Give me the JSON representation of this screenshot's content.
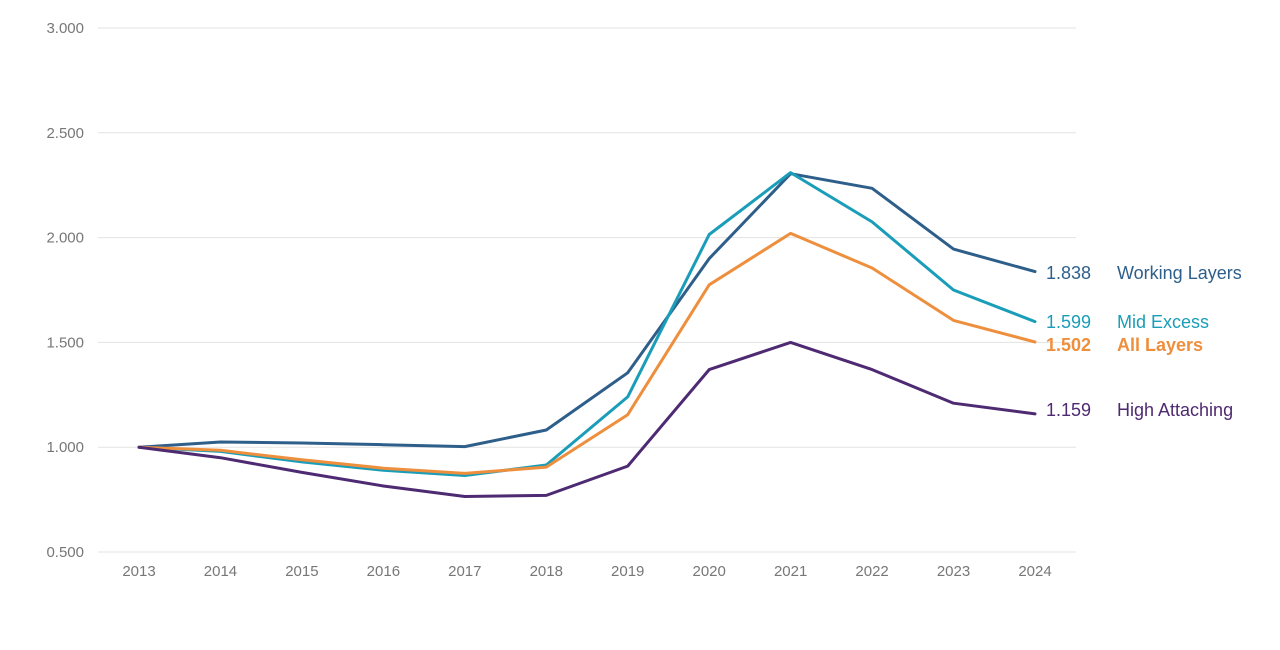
{
  "chart_data": {
    "type": "line",
    "x": [
      "2013",
      "2014",
      "2015",
      "2016",
      "2017",
      "2018",
      "2019",
      "2020",
      "2021",
      "2022",
      "2023",
      "2024"
    ],
    "ylim": [
      0.5,
      3.0
    ],
    "yticks": [
      "0.500",
      "1.000",
      "1.500",
      "2.000",
      "2.500",
      "3.000"
    ],
    "grid": "horizontal",
    "legend": "right, end-of-line labels",
    "series": [
      {
        "name": "Working Layers",
        "color": "#2E5F8A",
        "end_label": "1.838",
        "bold": false,
        "values": [
          1.0,
          1.025,
          1.02,
          1.012,
          1.003,
          1.082,
          1.355,
          1.9,
          2.305,
          2.235,
          1.945,
          1.838
        ]
      },
      {
        "name": "Mid Excess",
        "color": "#1A9DB8",
        "end_label": "1.599",
        "bold": false,
        "values": [
          1.0,
          0.98,
          0.93,
          0.89,
          0.865,
          0.915,
          1.24,
          2.015,
          2.31,
          2.075,
          1.75,
          1.599
        ]
      },
      {
        "name": "All Layers",
        "color": "#EE8F3D",
        "end_label": "1.502",
        "bold": true,
        "values": [
          1.0,
          0.985,
          0.94,
          0.9,
          0.875,
          0.905,
          1.155,
          1.775,
          2.02,
          1.855,
          1.605,
          1.502
        ]
      },
      {
        "name": "High Attaching",
        "color": "#4E2A72",
        "end_label": "1.159",
        "bold": false,
        "values": [
          1.0,
          0.95,
          0.88,
          0.815,
          0.765,
          0.77,
          0.91,
          1.37,
          1.5,
          1.37,
          1.21,
          1.159
        ]
      }
    ]
  }
}
